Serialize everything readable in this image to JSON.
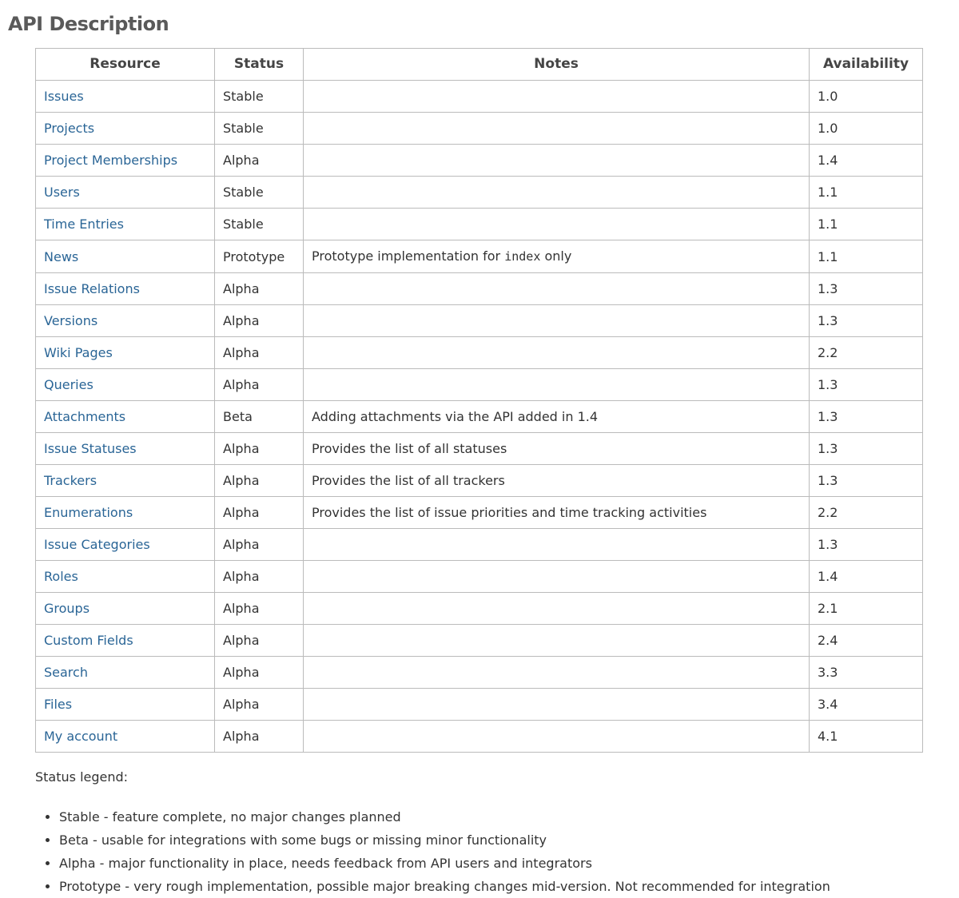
{
  "colors": {
    "link": "#2a6596",
    "heading": "#5a5a5a",
    "border": "#bbbbbb",
    "text": "#333333"
  },
  "page": {
    "title": "API Description"
  },
  "table": {
    "headers": [
      "Resource",
      "Status",
      "Notes",
      "Availability"
    ],
    "rows": [
      {
        "resource": "Issues",
        "status": "Stable",
        "notes": "",
        "availability": "1.0"
      },
      {
        "resource": "Projects",
        "status": "Stable",
        "notes": "",
        "availability": "1.0"
      },
      {
        "resource": "Project Memberships",
        "status": "Alpha",
        "notes": "",
        "availability": "1.4"
      },
      {
        "resource": "Users",
        "status": "Stable",
        "notes": "",
        "availability": "1.1"
      },
      {
        "resource": "Time Entries",
        "status": "Stable",
        "notes": "",
        "availability": "1.1"
      },
      {
        "resource": "News",
        "status": "Prototype",
        "notes": "Prototype implementation for index only",
        "notes_parts": [
          {
            "type": "text",
            "value": "Prototype implementation for "
          },
          {
            "type": "code",
            "value": "index"
          },
          {
            "type": "text",
            "value": " only"
          }
        ],
        "availability": "1.1"
      },
      {
        "resource": "Issue Relations",
        "status": "Alpha",
        "notes": "",
        "availability": "1.3"
      },
      {
        "resource": "Versions",
        "status": "Alpha",
        "notes": "",
        "availability": "1.3"
      },
      {
        "resource": "Wiki Pages",
        "status": "Alpha",
        "notes": "",
        "availability": "2.2"
      },
      {
        "resource": "Queries",
        "status": "Alpha",
        "notes": "",
        "availability": "1.3"
      },
      {
        "resource": "Attachments",
        "status": "Beta",
        "notes": "Adding attachments via the API added in 1.4",
        "availability": "1.3"
      },
      {
        "resource": "Issue Statuses",
        "status": "Alpha",
        "notes": "Provides the list of all statuses",
        "availability": "1.3"
      },
      {
        "resource": "Trackers",
        "status": "Alpha",
        "notes": "Provides the list of all trackers",
        "availability": "1.3"
      },
      {
        "resource": "Enumerations",
        "status": "Alpha",
        "notes": "Provides the list of issue priorities and time tracking activities",
        "availability": "2.2"
      },
      {
        "resource": "Issue Categories",
        "status": "Alpha",
        "notes": "",
        "availability": "1.3"
      },
      {
        "resource": "Roles",
        "status": "Alpha",
        "notes": "",
        "availability": "1.4"
      },
      {
        "resource": "Groups",
        "status": "Alpha",
        "notes": "",
        "availability": "2.1"
      },
      {
        "resource": "Custom Fields",
        "status": "Alpha",
        "notes": "",
        "availability": "2.4"
      },
      {
        "resource": "Search",
        "status": "Alpha",
        "notes": "",
        "availability": "3.3"
      },
      {
        "resource": "Files",
        "status": "Alpha",
        "notes": "",
        "availability": "3.4"
      },
      {
        "resource": "My account",
        "status": "Alpha",
        "notes": "",
        "availability": "4.1"
      }
    ]
  },
  "legend": {
    "title": "Status legend:",
    "items": [
      "Stable - feature complete, no major changes planned",
      "Beta - usable for integrations with some bugs or missing minor functionality",
      "Alpha - major functionality in place, needs feedback from API users and integrators",
      "Prototype - very rough implementation, possible major breaking changes mid-version. Not recommended for integration"
    ]
  }
}
